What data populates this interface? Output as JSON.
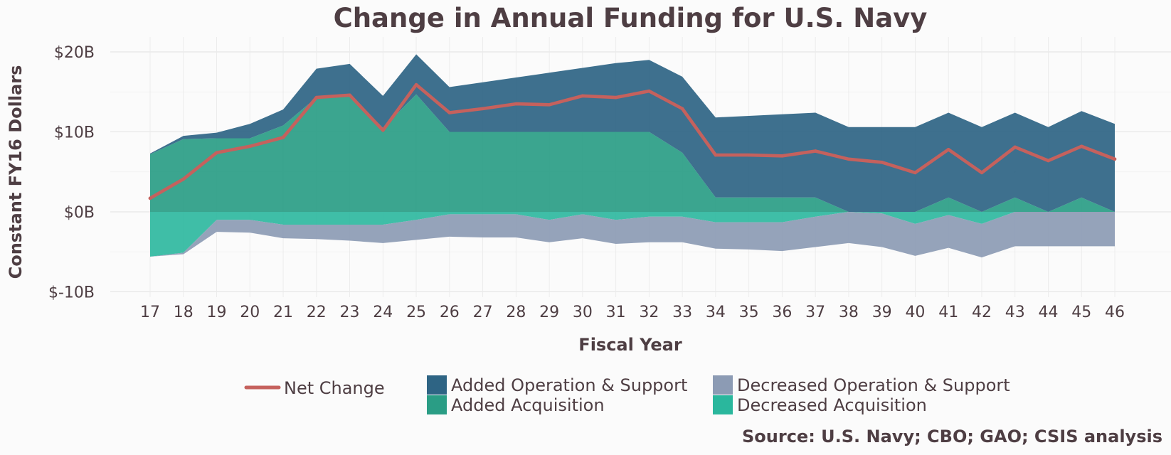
{
  "chart_data": {
    "type": "area",
    "title": "Change in Annual Funding for U.S. Navy",
    "xlabel": "Fiscal Year",
    "ylabel": "Constant FY16 Dollars",
    "source": "Source: U.S. Navy; CBO; GAO; CSIS analysis",
    "x": [
      "17",
      "18",
      "19",
      "20",
      "21",
      "22",
      "23",
      "24",
      "25",
      "26",
      "27",
      "28",
      "29",
      "30",
      "31",
      "32",
      "33",
      "34",
      "35",
      "36",
      "37",
      "38",
      "39",
      "40",
      "41",
      "42",
      "43",
      "44",
      "45",
      "46"
    ],
    "ylim": [
      -11.5,
      21.5
    ],
    "yticks": [
      20,
      10,
      0,
      -10
    ],
    "ytick_labels": [
      "$20B",
      "$10B",
      "$0B",
      "$-10B"
    ],
    "grid": true,
    "legend_position": "bottom",
    "series": [
      {
        "name": "Added Operation & Support",
        "color": "#2e6484",
        "values": [
          0.1,
          0.4,
          0.7,
          1.8,
          2.0,
          3.6,
          3.8,
          4.0,
          5.0,
          5.6,
          6.2,
          6.8,
          7.4,
          8.0,
          8.6,
          9.0,
          9.5,
          10.0,
          10.2,
          10.4,
          10.6,
          10.6,
          10.6,
          10.6,
          10.6,
          10.6,
          10.6,
          10.6,
          10.8,
          11.0
        ]
      },
      {
        "name": "Added Acquisition",
        "color": "#2a9d85",
        "values": [
          7.2,
          9.1,
          9.2,
          9.2,
          10.8,
          14.3,
          14.7,
          10.5,
          14.7,
          10.0,
          10.0,
          10.0,
          10.0,
          10.0,
          10.0,
          10.0,
          7.4,
          1.8,
          1.8,
          1.8,
          1.8,
          0.0,
          0.0,
          0.0,
          1.8,
          0.0,
          1.8,
          0.0,
          1.8,
          0.0
        ]
      },
      {
        "name": "Decreased Operation & Support",
        "color": "#8c9bb4",
        "values": [
          0.0,
          -0.2,
          -1.5,
          -1.6,
          -1.7,
          -1.8,
          -2.0,
          -2.3,
          -2.5,
          -2.8,
          -2.9,
          -2.9,
          -2.8,
          -3.0,
          -3.0,
          -3.2,
          -3.2,
          -3.3,
          -3.4,
          -3.6,
          -3.8,
          -3.9,
          -4.2,
          -4.0,
          -4.1,
          -4.2,
          -4.3,
          -4.3,
          -4.3,
          -4.3
        ]
      },
      {
        "name": "Decreased Acquisition",
        "color": "#2ab79d",
        "values": [
          -5.6,
          -5.1,
          -1.0,
          -1.0,
          -1.6,
          -1.6,
          -1.6,
          -1.6,
          -1.0,
          -0.3,
          -0.3,
          -0.3,
          -1.0,
          -0.3,
          -1.0,
          -0.6,
          -0.6,
          -1.3,
          -1.3,
          -1.3,
          -0.6,
          0.0,
          -0.2,
          -1.5,
          -0.4,
          -1.5,
          0.0,
          0.0,
          0.0,
          0.0
        ]
      },
      {
        "name": "Net Change",
        "color": "#c5615d",
        "values": [
          1.7,
          4.1,
          7.4,
          8.2,
          9.3,
          14.3,
          14.6,
          10.2,
          15.9,
          12.4,
          12.9,
          13.5,
          13.4,
          14.5,
          14.3,
          15.1,
          12.9,
          7.1,
          7.1,
          7.0,
          7.6,
          6.6,
          6.2,
          4.9,
          7.8,
          4.9,
          8.1,
          6.4,
          8.2,
          6.6
        ]
      }
    ]
  }
}
